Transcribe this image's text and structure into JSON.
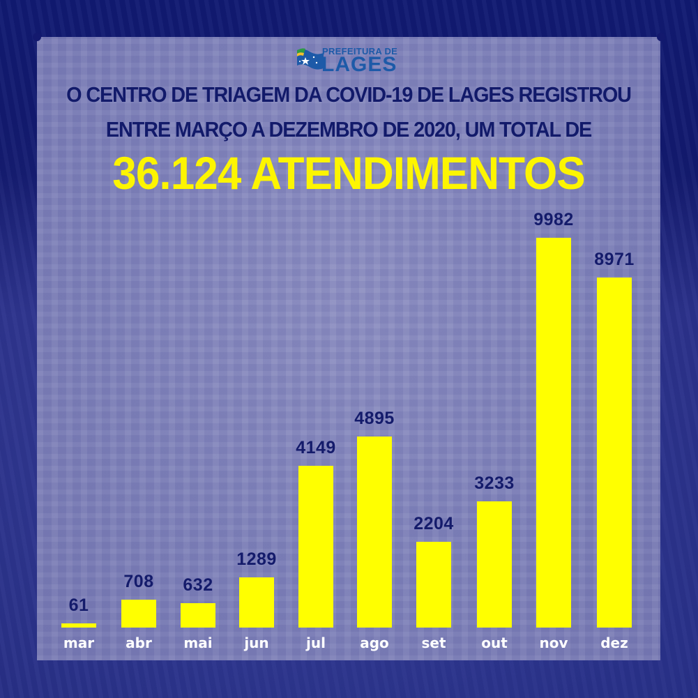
{
  "header": {
    "logo_top": "PREFEITURA DE",
    "logo_main": "LAGES",
    "line1": "O CENTRO DE TRIAGEM DA COVID-19 DE LAGES REGISTROU",
    "line2": "ENTRE MARÇO A DEZEMBRO DE 2020, UM TOTAL DE",
    "headline": "36.124 ATENDIMENTOS"
  },
  "colors": {
    "background": "#13196e",
    "panel": "#7d80b8",
    "bar": "#ffff00",
    "value_text": "#141b6b",
    "headline": "#fdf500",
    "category_text": "#ffffff"
  },
  "chart_data": {
    "type": "bar",
    "title": "O CENTRO DE TRIAGEM DA COVID-19 DE LAGES REGISTROU ENTRE MARÇO A DEZEMBRO DE 2020, UM TOTAL DE 36.124 ATENDIMENTOS",
    "categories": [
      "mar",
      "abr",
      "mai",
      "jun",
      "jul",
      "ago",
      "set",
      "out",
      "nov",
      "dez"
    ],
    "values": [
      61,
      708,
      632,
      1289,
      4149,
      4895,
      2204,
      3233,
      9982,
      8971
    ],
    "value_labels": [
      "61",
      "708",
      "632",
      "1289",
      "4149",
      "4895",
      "2204",
      "3233",
      "9982",
      "8971"
    ],
    "xlabel": "",
    "ylabel": "",
    "ylim": [
      0,
      10000
    ],
    "grid": false,
    "legend": null,
    "total": "36.124"
  }
}
